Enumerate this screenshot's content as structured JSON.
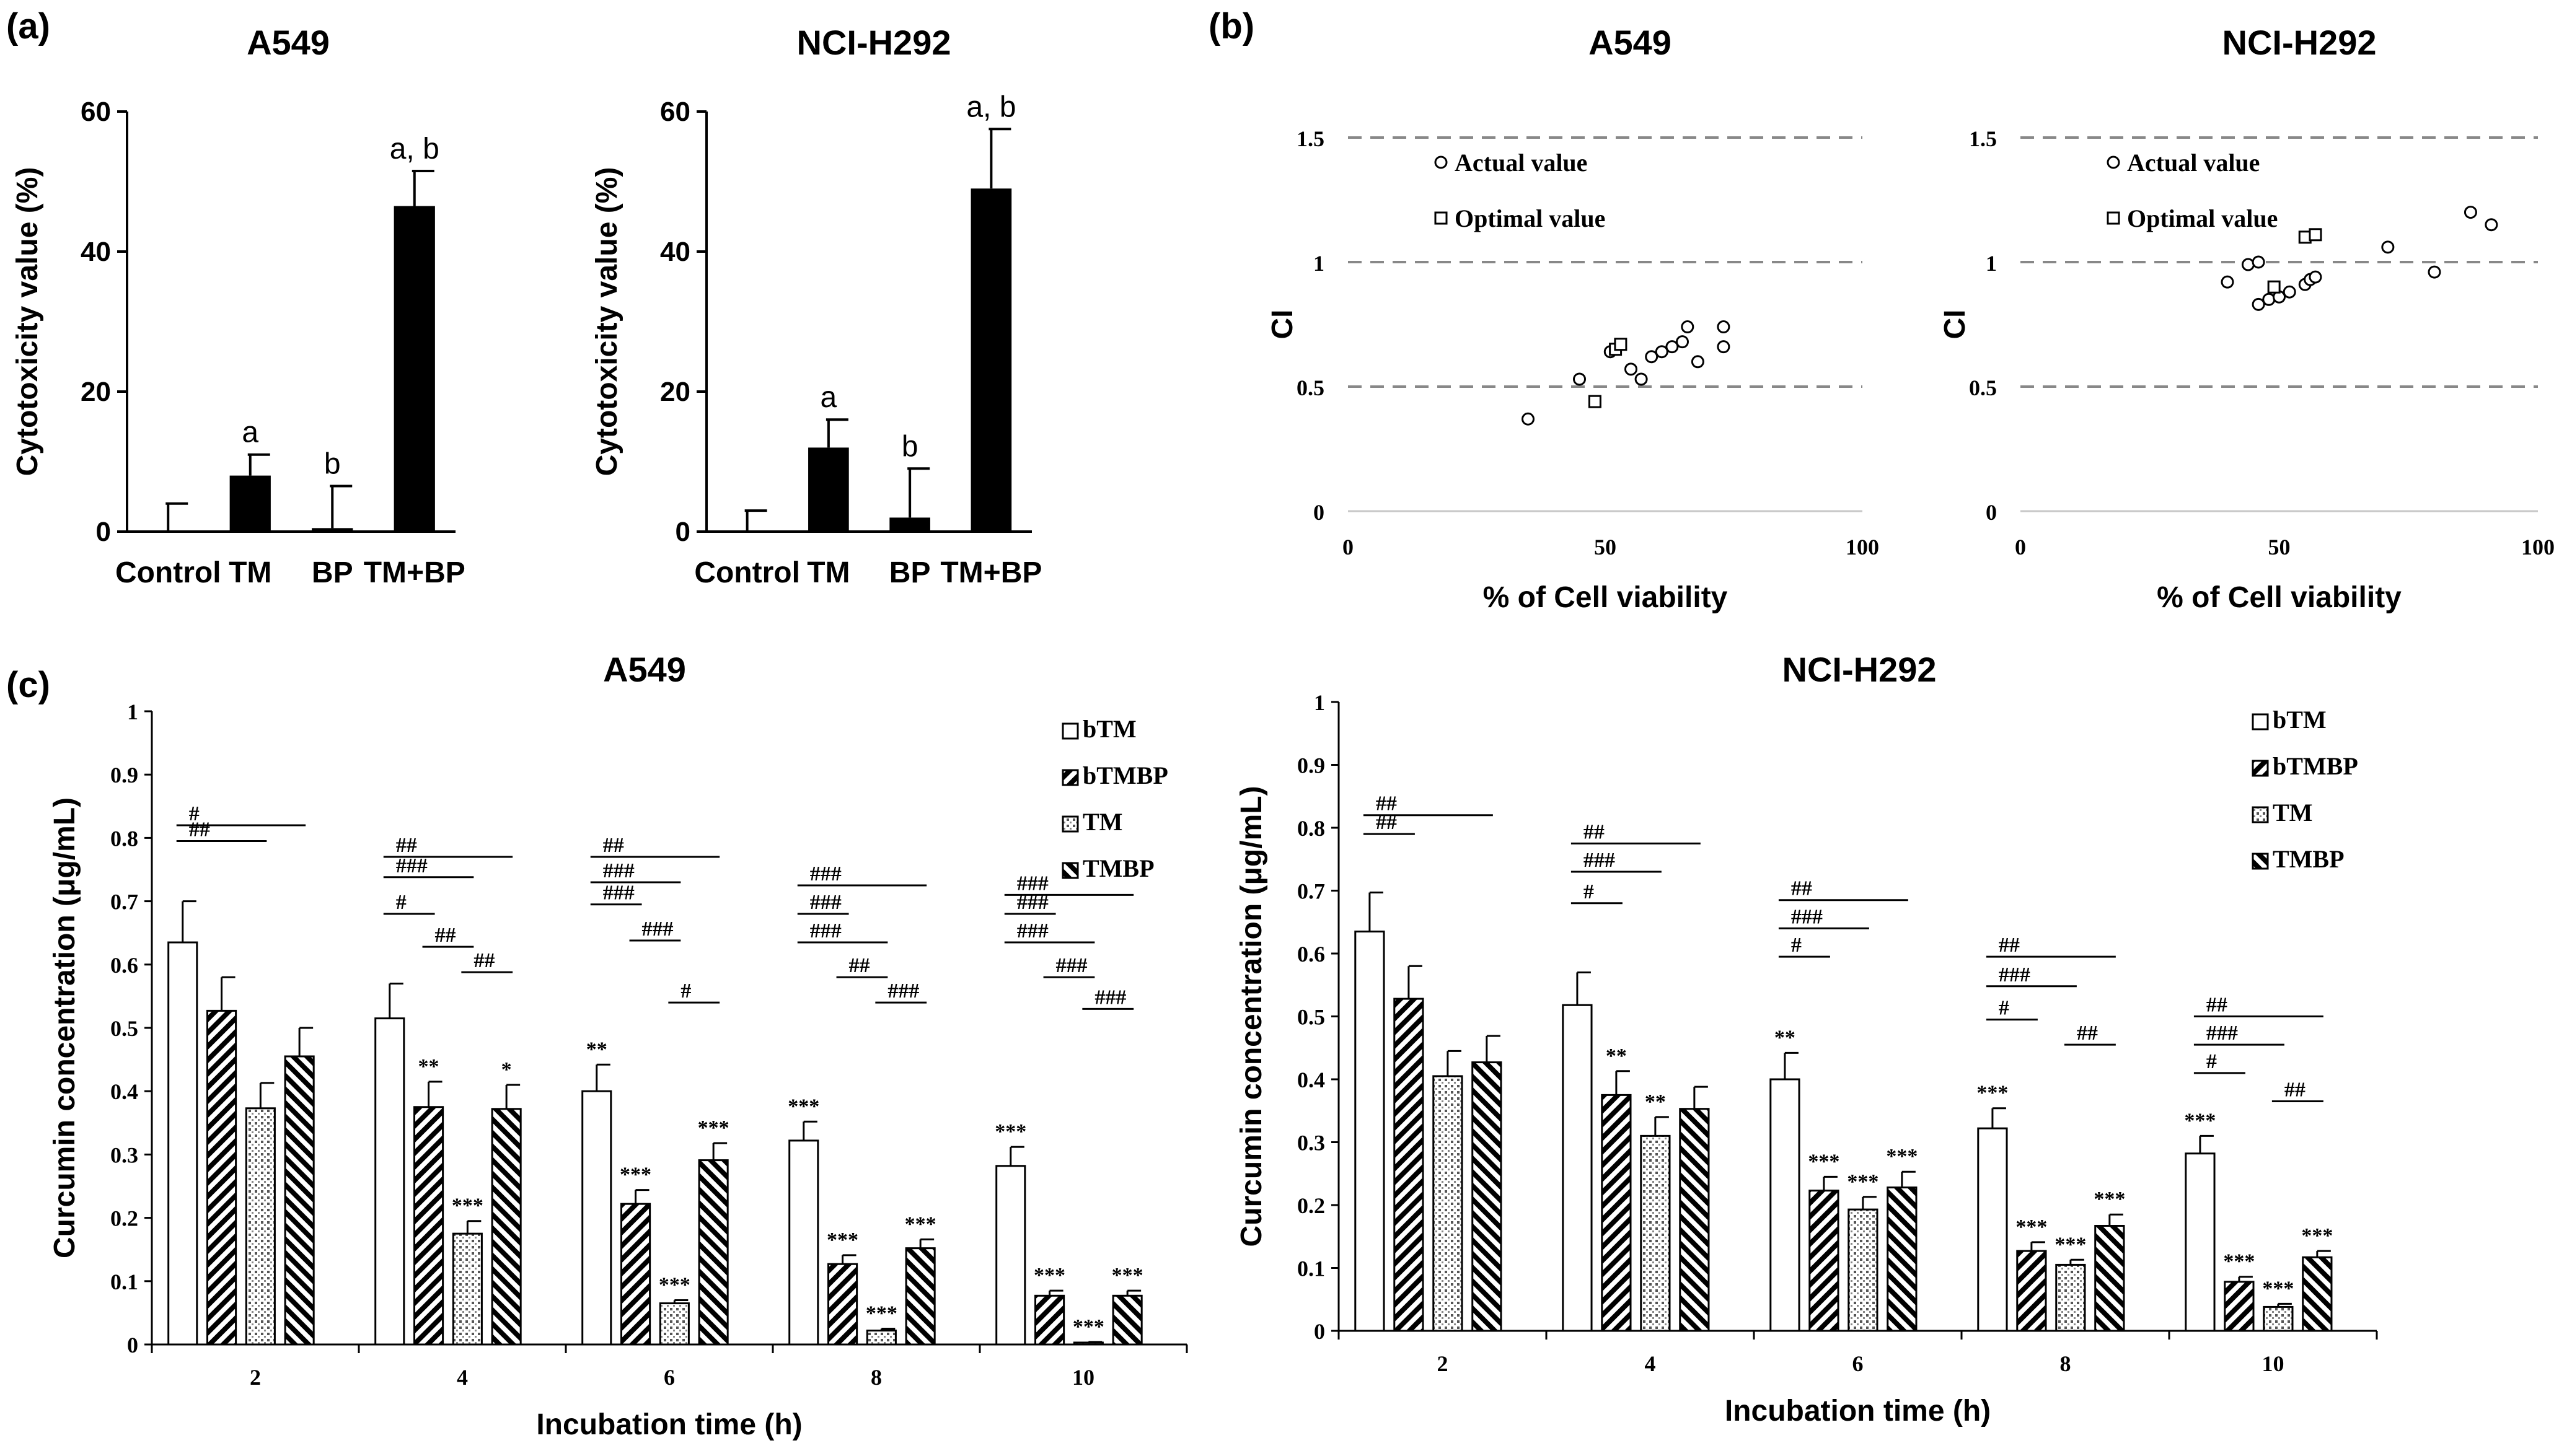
{
  "panel_labels": [
    "(a)",
    "(b)",
    "(c)"
  ],
  "chart_data": [
    {
      "id": "a1",
      "type": "bar",
      "panel": "(a)",
      "title": "A549",
      "ylabel": "Cytotoxicity value (%)",
      "xlabel": "",
      "categories": [
        "Control",
        "TM",
        "BP",
        "TM+BP"
      ],
      "values": [
        0,
        8,
        0.5,
        46.5
      ],
      "errors": [
        4,
        3,
        6,
        5
      ],
      "annotations": [
        "",
        "a",
        "b",
        "a, b"
      ],
      "ylim": [
        0,
        60
      ],
      "yticks": [
        0,
        20,
        40,
        60
      ],
      "bar_color": "#000000"
    },
    {
      "id": "a2",
      "type": "bar",
      "panel": "(a)",
      "title": "NCI-H292",
      "ylabel": "Cytotoxicity value (%)",
      "xlabel": "",
      "categories": [
        "Control",
        "TM",
        "BP",
        "TM+BP"
      ],
      "values": [
        0,
        12,
        2,
        49
      ],
      "errors": [
        3,
        4,
        7,
        8.5
      ],
      "annotations": [
        "",
        "a",
        "b",
        "a, b"
      ],
      "ylim": [
        0,
        60
      ],
      "yticks": [
        0,
        20,
        40,
        60
      ],
      "bar_color": "#000000"
    },
    {
      "id": "b1",
      "type": "scatter",
      "panel": "(b)",
      "title": "A549",
      "xlabel": "% of Cell viability",
      "ylabel": "CI",
      "xlim": [
        0,
        100
      ],
      "ylim": [
        0,
        1.5
      ],
      "xticks": [
        0,
        50,
        100
      ],
      "yticks": [
        0,
        0.5,
        1,
        1.5
      ],
      "ytick_labels": [
        "0",
        "0.5",
        "1",
        "1.5"
      ],
      "reference_lines": [
        0.5,
        1,
        1.5
      ],
      "legend": [
        "Actual value",
        "Optimal value"
      ],
      "series": [
        {
          "name": "Actual value",
          "marker": "circle",
          "points": [
            [
              35,
              0.37
            ],
            [
              45,
              0.53
            ],
            [
              51,
              0.64
            ],
            [
              55,
              0.57
            ],
            [
              57,
              0.53
            ],
            [
              59,
              0.62
            ],
            [
              61,
              0.64
            ],
            [
              63,
              0.66
            ],
            [
              65,
              0.68
            ],
            [
              66,
              0.74
            ],
            [
              68,
              0.6
            ],
            [
              73,
              0.74
            ],
            [
              73,
              0.66
            ]
          ]
        },
        {
          "name": "Optimal value",
          "marker": "square",
          "points": [
            [
              48,
              0.44
            ],
            [
              52,
              0.65
            ],
            [
              53,
              0.67
            ]
          ]
        }
      ]
    },
    {
      "id": "b2",
      "type": "scatter",
      "panel": "(b)",
      "title": "NCI-H292",
      "xlabel": "% of Cell viability",
      "ylabel": "CI",
      "xlim": [
        0,
        100
      ],
      "ylim": [
        0,
        1.5
      ],
      "xticks": [
        0,
        50,
        100
      ],
      "yticks": [
        0,
        0.5,
        1,
        1.5
      ],
      "ytick_labels": [
        "0",
        "0.5",
        "1",
        "1.5"
      ],
      "reference_lines": [
        0.5,
        1,
        1.5
      ],
      "legend": [
        "Actual value",
        "Optimal value"
      ],
      "series": [
        {
          "name": "Actual value",
          "marker": "circle",
          "points": [
            [
              40,
              0.92
            ],
            [
              44,
              0.99
            ],
            [
              46,
              1.0
            ],
            [
              46,
              0.83
            ],
            [
              48,
              0.85
            ],
            [
              50,
              0.86
            ],
            [
              52,
              0.88
            ],
            [
              55,
              0.91
            ],
            [
              56,
              0.93
            ],
            [
              57,
              0.94
            ],
            [
              71,
              1.06
            ],
            [
              80,
              0.96
            ],
            [
              87,
              1.2
            ],
            [
              91,
              1.15
            ]
          ]
        },
        {
          "name": "Optimal value",
          "marker": "square",
          "points": [
            [
              49,
              0.9
            ],
            [
              55,
              1.1
            ],
            [
              57,
              1.11
            ]
          ]
        }
      ]
    },
    {
      "id": "c1",
      "type": "bar",
      "panel": "(c)",
      "title": "A549",
      "xlabel": "Incubation time (h)",
      "ylabel": "Curcumin concentration (μg/mL)",
      "categories": [
        "2",
        "4",
        "6",
        "8",
        "10"
      ],
      "ylim": [
        0,
        1
      ],
      "yticks": [
        0,
        0.1,
        0.2,
        0.3,
        0.4,
        0.5,
        0.6,
        0.7,
        0.8,
        0.9,
        1
      ],
      "ytick_labels": [
        "0",
        "0.1",
        "0.2",
        "0.3",
        "0.4",
        "0.5",
        "0.6",
        "0.7",
        "0.8",
        "0.9",
        "1"
      ],
      "legend": [
        "bTM",
        "bTMBP",
        "TM",
        "TMBP"
      ],
      "series": [
        {
          "name": "bTM",
          "pattern": "white",
          "values": [
            0.635,
            0.515,
            0.4,
            0.322,
            0.282
          ],
          "errors": [
            0.065,
            0.055,
            0.042,
            0.03,
            0.03
          ],
          "marks": [
            "",
            "",
            "**",
            "***",
            "***"
          ]
        },
        {
          "name": "bTMBP",
          "pattern": "hatch-right",
          "values": [
            0.527,
            0.375,
            0.222,
            0.127,
            0.077
          ],
          "errors": [
            0.053,
            0.04,
            0.022,
            0.014,
            0.008
          ],
          "marks": [
            "",
            "**",
            "***",
            "***",
            "***"
          ]
        },
        {
          "name": "TM",
          "pattern": "dots",
          "values": [
            0.373,
            0.175,
            0.065,
            0.022,
            0.003
          ],
          "errors": [
            0.04,
            0.02,
            0.005,
            0.003,
            0.001
          ],
          "marks": [
            "",
            "***",
            "***",
            "***",
            "***"
          ]
        },
        {
          "name": "TMBP",
          "pattern": "hatch-left",
          "values": [
            0.455,
            0.372,
            0.291,
            0.152,
            0.077
          ],
          "errors": [
            0.045,
            0.038,
            0.027,
            0.014,
            0.008
          ],
          "marks": [
            "",
            "*",
            "***",
            "***",
            "***"
          ]
        }
      ],
      "comparisons": [
        {
          "group": 0,
          "from": 0,
          "to": 2,
          "y": 0.795,
          "label": "##"
        },
        {
          "group": 0,
          "from": 0,
          "to": 3,
          "y": 0.82,
          "label": "#"
        },
        {
          "group": 1,
          "from": 0,
          "to": 1,
          "y": 0.68,
          "label": "#"
        },
        {
          "group": 1,
          "from": 0,
          "to": 2,
          "y": 0.738,
          "label": "###"
        },
        {
          "group": 1,
          "from": 0,
          "to": 3,
          "y": 0.77,
          "label": "##"
        },
        {
          "group": 1,
          "from": 1,
          "to": 2,
          "y": 0.628,
          "label": "##"
        },
        {
          "group": 1,
          "from": 2,
          "to": 3,
          "y": 0.588,
          "label": "##"
        },
        {
          "group": 2,
          "from": 0,
          "to": 1,
          "y": 0.695,
          "label": "###"
        },
        {
          "group": 2,
          "from": 0,
          "to": 2,
          "y": 0.73,
          "label": "###"
        },
        {
          "group": 2,
          "from": 0,
          "to": 3,
          "y": 0.77,
          "label": "##"
        },
        {
          "group": 2,
          "from": 1,
          "to": 2,
          "y": 0.638,
          "label": "###"
        },
        {
          "group": 2,
          "from": 2,
          "to": 3,
          "y": 0.54,
          "label": "#"
        },
        {
          "group": 3,
          "from": 0,
          "to": 1,
          "y": 0.68,
          "label": "###"
        },
        {
          "group": 3,
          "from": 0,
          "to": 2,
          "y": 0.635,
          "label": "###"
        },
        {
          "group": 3,
          "from": 0,
          "to": 3,
          "y": 0.725,
          "label": "###"
        },
        {
          "group": 3,
          "from": 1,
          "to": 2,
          "y": 0.58,
          "label": "##"
        },
        {
          "group": 3,
          "from": 2,
          "to": 3,
          "y": 0.54,
          "label": "###"
        },
        {
          "group": 4,
          "from": 0,
          "to": 1,
          "y": 0.68,
          "label": "###"
        },
        {
          "group": 4,
          "from": 0,
          "to": 2,
          "y": 0.635,
          "label": "###"
        },
        {
          "group": 4,
          "from": 0,
          "to": 3,
          "y": 0.71,
          "label": "###"
        },
        {
          "group": 4,
          "from": 1,
          "to": 2,
          "y": 0.58,
          "label": "###"
        },
        {
          "group": 4,
          "from": 2,
          "to": 3,
          "y": 0.53,
          "label": "###"
        }
      ]
    },
    {
      "id": "c2",
      "type": "bar",
      "panel": "(c)",
      "title": "NCI-H292",
      "xlabel": "Incubation time (h)",
      "ylabel": "Curcumin concentration (μg/mL)",
      "categories": [
        "2",
        "4",
        "6",
        "8",
        "10"
      ],
      "ylim": [
        0,
        1
      ],
      "yticks": [
        0,
        0.1,
        0.2,
        0.3,
        0.4,
        0.5,
        0.6,
        0.7,
        0.8,
        0.9,
        1
      ],
      "ytick_labels": [
        "0",
        "0.1",
        "0.2",
        "0.3",
        "0.4",
        "0.5",
        "0.6",
        "0.7",
        "0.8",
        "0.9",
        "1"
      ],
      "legend": [
        "bTM",
        "bTMBP",
        "TM",
        "TMBP"
      ],
      "series": [
        {
          "name": "bTM",
          "pattern": "white",
          "values": [
            0.635,
            0.518,
            0.4,
            0.322,
            0.282
          ],
          "errors": [
            0.062,
            0.052,
            0.042,
            0.032,
            0.028
          ],
          "marks": [
            "",
            "",
            "**",
            "***",
            "***"
          ]
        },
        {
          "name": "bTMBP",
          "pattern": "hatch-right",
          "values": [
            0.528,
            0.375,
            0.223,
            0.127,
            0.078
          ],
          "errors": [
            0.052,
            0.038,
            0.022,
            0.014,
            0.008
          ],
          "marks": [
            "",
            "**",
            "***",
            "***",
            "***"
          ]
        },
        {
          "name": "TM",
          "pattern": "dots",
          "values": [
            0.405,
            0.31,
            0.193,
            0.105,
            0.038
          ],
          "errors": [
            0.04,
            0.03,
            0.02,
            0.008,
            0.005
          ],
          "marks": [
            "",
            "**",
            "***",
            "***",
            "***"
          ]
        },
        {
          "name": "TMBP",
          "pattern": "hatch-left",
          "values": [
            0.427,
            0.353,
            0.228,
            0.167,
            0.117
          ],
          "errors": [
            0.042,
            0.035,
            0.025,
            0.018,
            0.01
          ],
          "marks": [
            "",
            "",
            "***",
            "***",
            "***"
          ]
        }
      ],
      "comparisons": [
        {
          "group": 0,
          "from": 0,
          "to": 1,
          "y": 0.79,
          "label": "##"
        },
        {
          "group": 0,
          "from": 0,
          "to": 3,
          "y": 0.82,
          "label": "##"
        },
        {
          "group": 1,
          "from": 0,
          "to": 1,
          "y": 0.68,
          "label": "#"
        },
        {
          "group": 1,
          "from": 0,
          "to": 2,
          "y": 0.73,
          "label": "###"
        },
        {
          "group": 1,
          "from": 0,
          "to": 3,
          "y": 0.775,
          "label": "##"
        },
        {
          "group": 2,
          "from": 0,
          "to": 1,
          "y": 0.595,
          "label": "#"
        },
        {
          "group": 2,
          "from": 0,
          "to": 2,
          "y": 0.64,
          "label": "###"
        },
        {
          "group": 2,
          "from": 0,
          "to": 3,
          "y": 0.685,
          "label": "##"
        },
        {
          "group": 3,
          "from": 0,
          "to": 1,
          "y": 0.495,
          "label": "#"
        },
        {
          "group": 3,
          "from": 0,
          "to": 2,
          "y": 0.548,
          "label": "###"
        },
        {
          "group": 3,
          "from": 0,
          "to": 3,
          "y": 0.595,
          "label": "##"
        },
        {
          "group": 3,
          "from": 2,
          "to": 3,
          "y": 0.455,
          "label": "##"
        },
        {
          "group": 4,
          "from": 0,
          "to": 1,
          "y": 0.41,
          "label": "#"
        },
        {
          "group": 4,
          "from": 0,
          "to": 2,
          "y": 0.455,
          "label": "###"
        },
        {
          "group": 4,
          "from": 0,
          "to": 3,
          "y": 0.5,
          "label": "##"
        },
        {
          "group": 4,
          "from": 2,
          "to": 3,
          "y": 0.365,
          "label": "##"
        }
      ]
    }
  ]
}
